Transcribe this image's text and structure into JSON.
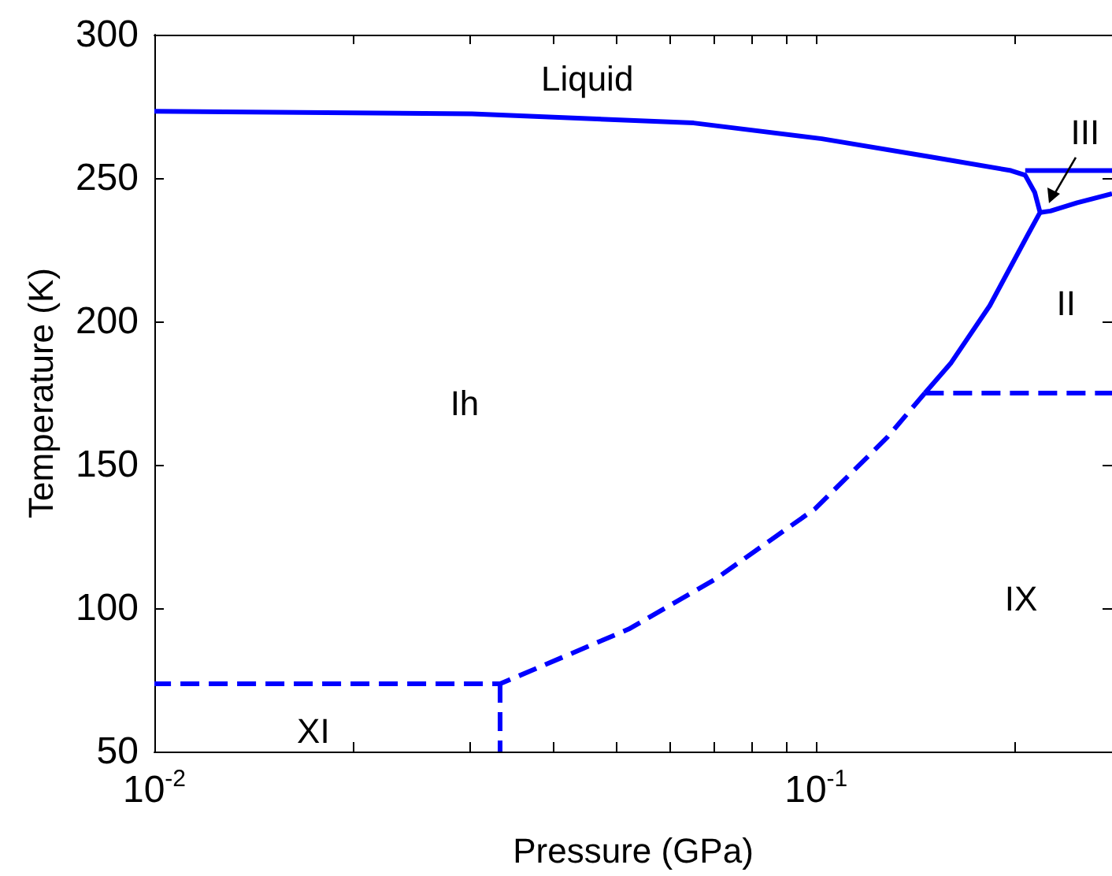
{
  "chart_data": {
    "type": "line",
    "xlabel": "Pressure (GPa)",
    "ylabel": "Temperature (K)",
    "log": "x",
    "grid": false,
    "marker": "none",
    "xlim": [
      0.01,
      0.28
    ],
    "ylim": [
      50,
      300
    ],
    "xticks": [
      {
        "value": 0.01,
        "label": "10$^{-2}$"
      },
      {
        "value": 0.02,
        "label": null
      },
      {
        "value": 0.03,
        "label": null
      },
      {
        "value": 0.04,
        "label": null
      },
      {
        "value": 0.05,
        "label": null
      },
      {
        "value": 0.06,
        "label": null
      },
      {
        "value": 0.07,
        "label": null
      },
      {
        "value": 0.08,
        "label": null
      },
      {
        "value": 0.09,
        "label": null
      },
      {
        "value": 0.1,
        "label": "10$^{-1}$"
      },
      {
        "value": 0.2,
        "label": null
      }
    ],
    "yticks": [
      50,
      100,
      150,
      200,
      250,
      300
    ],
    "series": [
      {
        "color": "#0000ff",
        "line_style": "solid",
        "x": [
          0.01,
          0.0302,
          0.0653,
          0.102,
          0.148,
          0.197,
          0.207,
          0.214,
          0.218,
          0.209,
          0.183,
          0.16,
          0.146
        ],
        "values": [
          273.3,
          272.4,
          269.2,
          263.7,
          257.5,
          252.6,
          251,
          245,
          238,
          230.3,
          205.5,
          185.6,
          175
        ]
      },
      {
        "color": "#0000ff",
        "line_style": "solid",
        "x": [
          0.207,
          0.28
        ],
        "values": [
          252.6,
          252.6
        ]
      },
      {
        "color": "#0000ff",
        "line_style": "solid",
        "x": [
          0.218,
          0.226,
          0.248,
          0.28
        ],
        "values": [
          238,
          238.5,
          241.4,
          244.5
        ]
      },
      {
        "color": "#0000ff",
        "line_style": "dashed",
        "x": [
          0.146,
          0.128,
          0.0997,
          0.0703,
          0.0521,
          0.0333,
          0.01
        ],
        "values": [
          175,
          159.5,
          134.7,
          110,
          92.7,
          73.6,
          73.6
        ]
      },
      {
        "color": "#0000ff",
        "line_style": "dashed",
        "x": [
          0.0333,
          0.0333
        ],
        "values": [
          73.6,
          50
        ]
      },
      {
        "color": "#0000ff",
        "line_style": "dashed",
        "x": [
          0.146,
          0.28
        ],
        "values": [
          175,
          175
        ]
      }
    ],
    "annotations": [
      "Liquid",
      "III",
      "Ih",
      "II",
      "IX",
      "XI"
    ]
  }
}
